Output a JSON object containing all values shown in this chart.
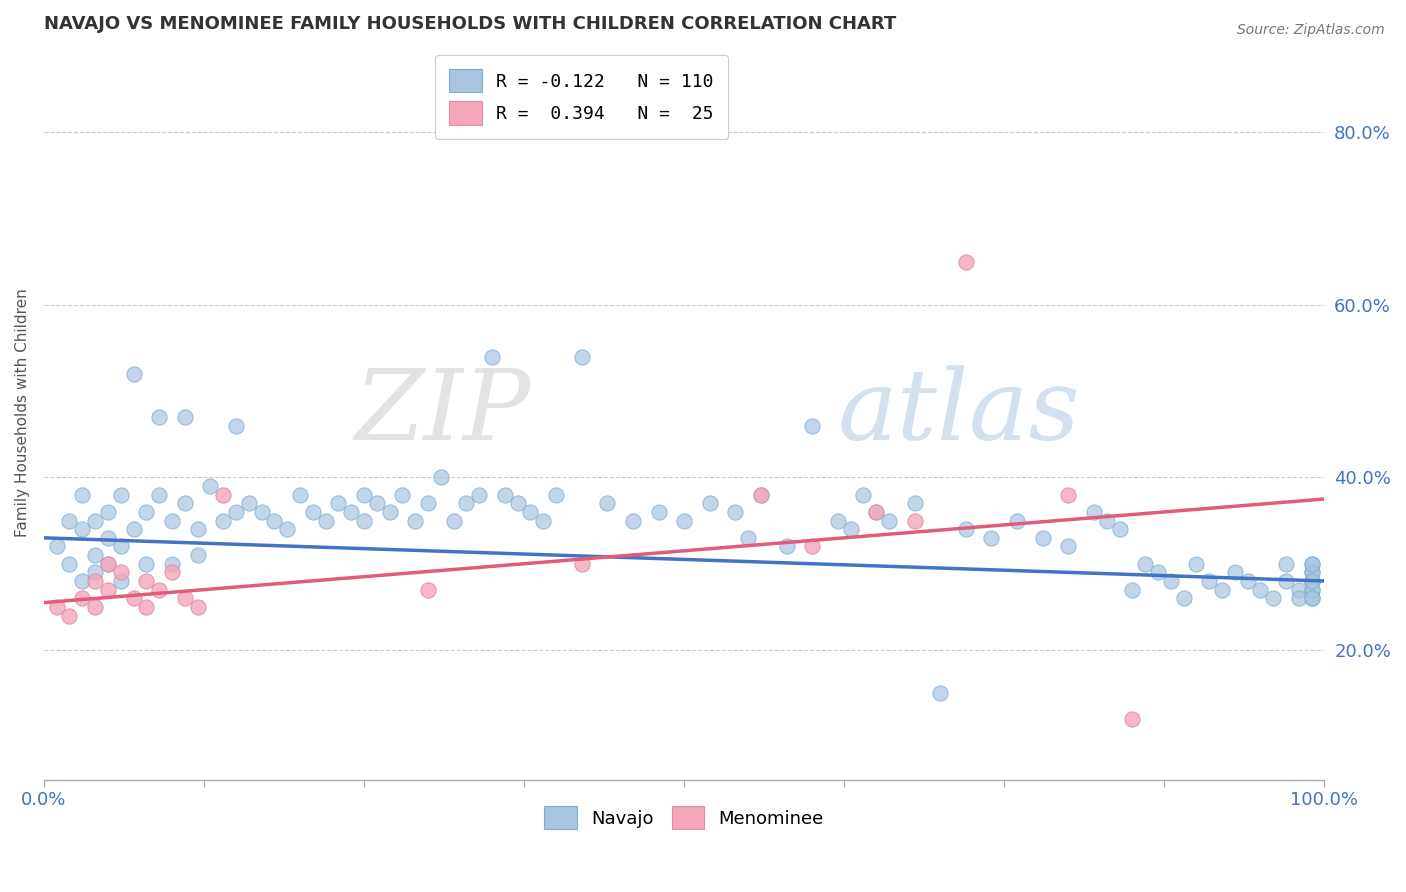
{
  "title": "NAVAJO VS MENOMINEE FAMILY HOUSEHOLDS WITH CHILDREN CORRELATION CHART",
  "source": "Source: ZipAtlas.com",
  "ylabel": "Family Households with Children",
  "ytick_labels": [
    "20.0%",
    "40.0%",
    "60.0%",
    "80.0%"
  ],
  "ytick_values": [
    0.2,
    0.4,
    0.6,
    0.8
  ],
  "xlim": [
    0.0,
    1.0
  ],
  "ylim": [
    0.05,
    0.9
  ],
  "watermark_zip": "ZIP",
  "watermark_atlas": "atlas",
  "legend_navajo": "R = -0.122   N = 110",
  "legend_menominee": "R =  0.394   N =  25",
  "navajo_color": "#a8c4e0",
  "menominee_color": "#f4a7b9",
  "navajo_line_color": "#4472c4",
  "menominee_line_color": "#e05c7a",
  "navajo_R": -0.122,
  "navajo_N": 110,
  "menominee_R": 0.394,
  "menominee_N": 25,
  "navajo_line_start": 0.33,
  "navajo_line_end": 0.28,
  "menominee_line_start": 0.255,
  "menominee_line_end": 0.375,
  "navajo_x": [
    0.01,
    0.02,
    0.02,
    0.03,
    0.03,
    0.03,
    0.04,
    0.04,
    0.04,
    0.05,
    0.05,
    0.05,
    0.06,
    0.06,
    0.06,
    0.07,
    0.07,
    0.08,
    0.08,
    0.09,
    0.09,
    0.1,
    0.1,
    0.11,
    0.11,
    0.12,
    0.12,
    0.13,
    0.14,
    0.15,
    0.15,
    0.16,
    0.17,
    0.18,
    0.19,
    0.2,
    0.21,
    0.22,
    0.23,
    0.24,
    0.25,
    0.25,
    0.26,
    0.27,
    0.28,
    0.29,
    0.3,
    0.31,
    0.32,
    0.33,
    0.34,
    0.35,
    0.36,
    0.37,
    0.38,
    0.39,
    0.4,
    0.42,
    0.44,
    0.46,
    0.48,
    0.5,
    0.52,
    0.54,
    0.55,
    0.56,
    0.58,
    0.6,
    0.62,
    0.63,
    0.64,
    0.65,
    0.66,
    0.68,
    0.7,
    0.72,
    0.74,
    0.76,
    0.78,
    0.8,
    0.82,
    0.83,
    0.84,
    0.85,
    0.86,
    0.87,
    0.88,
    0.89,
    0.9,
    0.91,
    0.92,
    0.93,
    0.94,
    0.95,
    0.96,
    0.97,
    0.97,
    0.98,
    0.98,
    0.99,
    0.99,
    0.99,
    0.99,
    0.99,
    0.99,
    0.99,
    0.99,
    0.99,
    0.99,
    0.99
  ],
  "navajo_y": [
    0.32,
    0.3,
    0.35,
    0.28,
    0.34,
    0.38,
    0.31,
    0.29,
    0.35,
    0.33,
    0.3,
    0.36,
    0.32,
    0.28,
    0.38,
    0.34,
    0.52,
    0.36,
    0.3,
    0.38,
    0.47,
    0.35,
    0.3,
    0.37,
    0.47,
    0.34,
    0.31,
    0.39,
    0.35,
    0.36,
    0.46,
    0.37,
    0.36,
    0.35,
    0.34,
    0.38,
    0.36,
    0.35,
    0.37,
    0.36,
    0.38,
    0.35,
    0.37,
    0.36,
    0.38,
    0.35,
    0.37,
    0.4,
    0.35,
    0.37,
    0.38,
    0.54,
    0.38,
    0.37,
    0.36,
    0.35,
    0.38,
    0.54,
    0.37,
    0.35,
    0.36,
    0.35,
    0.37,
    0.36,
    0.33,
    0.38,
    0.32,
    0.46,
    0.35,
    0.34,
    0.38,
    0.36,
    0.35,
    0.37,
    0.15,
    0.34,
    0.33,
    0.35,
    0.33,
    0.32,
    0.36,
    0.35,
    0.34,
    0.27,
    0.3,
    0.29,
    0.28,
    0.26,
    0.3,
    0.28,
    0.27,
    0.29,
    0.28,
    0.27,
    0.26,
    0.28,
    0.3,
    0.27,
    0.26,
    0.28,
    0.27,
    0.26,
    0.29,
    0.28,
    0.3,
    0.27,
    0.29,
    0.26,
    0.28,
    0.3
  ],
  "menominee_x": [
    0.01,
    0.02,
    0.03,
    0.04,
    0.04,
    0.05,
    0.05,
    0.06,
    0.07,
    0.08,
    0.08,
    0.09,
    0.1,
    0.11,
    0.12,
    0.14,
    0.3,
    0.42,
    0.56,
    0.6,
    0.65,
    0.68,
    0.72,
    0.8,
    0.85
  ],
  "menominee_y": [
    0.25,
    0.24,
    0.26,
    0.25,
    0.28,
    0.3,
    0.27,
    0.29,
    0.26,
    0.28,
    0.25,
    0.27,
    0.29,
    0.26,
    0.25,
    0.38,
    0.27,
    0.3,
    0.38,
    0.32,
    0.36,
    0.35,
    0.65,
    0.38,
    0.12
  ]
}
